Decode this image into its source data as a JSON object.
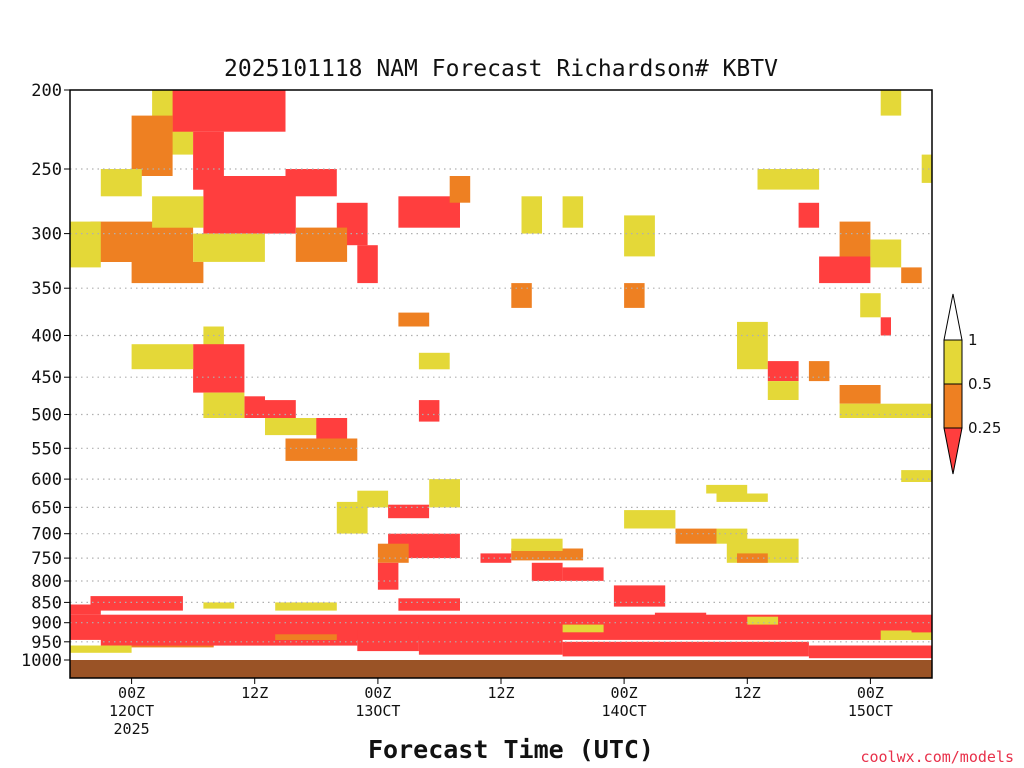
{
  "credit": "coolwx.com/models",
  "colors": {
    "lt_025": "#ff3e3e",
    "025_05": "#ee8022",
    "05_1": "#e4d838",
    "ground": "#9a5326",
    "gridline": "#b0b0b0"
  },
  "chart_data": {
    "type": "heatmap",
    "title": "2025101118 NAM Forecast Richardson# KBTV",
    "xlabel": "Forecast Time (UTC)",
    "ylabel": "",
    "y_scale": "log-pressure (hPa, inverted)",
    "ylim": [
      1000,
      200
    ],
    "y_ticks": [
      200,
      250,
      300,
      350,
      400,
      450,
      500,
      550,
      600,
      650,
      700,
      750,
      800,
      850,
      900,
      950,
      1000
    ],
    "x_unit": "forecast hour from 2025-10-11 18Z",
    "xlim": [
      0,
      84
    ],
    "x_ticks": [
      {
        "hour": 6,
        "labels": [
          "00Z",
          "12OCT",
          "2025"
        ]
      },
      {
        "hour": 18,
        "labels": [
          "12Z"
        ]
      },
      {
        "hour": 30,
        "labels": [
          "00Z",
          "13OCT"
        ]
      },
      {
        "hour": 42,
        "labels": [
          "12Z"
        ]
      },
      {
        "hour": 54,
        "labels": [
          "00Z",
          "14OCT"
        ]
      },
      {
        "hour": 66,
        "labels": [
          "12Z"
        ]
      },
      {
        "hour": 78,
        "labels": [
          "00Z",
          "15OCT"
        ]
      }
    ],
    "legend": {
      "placement": "right",
      "labels": [
        "1",
        "0.5",
        "0.25"
      ],
      "bins": [
        {
          "range": "< 0.25",
          "color": "#ff3e3e"
        },
        {
          "range": "0.25-0.5",
          "color": "#ee8022"
        },
        {
          "range": "0.5-1",
          "color": "#e4d838"
        }
      ]
    },
    "grid": "dotted horizontal at pressure ticks",
    "regions": [
      {
        "bin": "05_1",
        "x": [
          8,
          12
        ],
        "p": [
          200,
          240
        ]
      },
      {
        "bin": "lt_025",
        "x": [
          10,
          21
        ],
        "p": [
          200,
          225
        ]
      },
      {
        "bin": "025_05",
        "x": [
          6,
          10
        ],
        "p": [
          215,
          255
        ]
      },
      {
        "bin": "lt_025",
        "x": [
          12,
          15
        ],
        "p": [
          225,
          265
        ]
      },
      {
        "bin": "lt_025",
        "x": [
          13,
          22
        ],
        "p": [
          255,
          300
        ]
      },
      {
        "bin": "05_1",
        "x": [
          3,
          7
        ],
        "p": [
          250,
          270
        ]
      },
      {
        "bin": "025_05",
        "x": [
          2,
          12
        ],
        "p": [
          290,
          325
        ]
      },
      {
        "bin": "05_1",
        "x": [
          0,
          3
        ],
        "p": [
          290,
          330
        ]
      },
      {
        "bin": "05_1",
        "x": [
          8,
          13
        ],
        "p": [
          270,
          295
        ]
      },
      {
        "bin": "05_1",
        "x": [
          12,
          19
        ],
        "p": [
          300,
          325
        ]
      },
      {
        "bin": "025_05",
        "x": [
          6,
          13
        ],
        "p": [
          325,
          345
        ]
      },
      {
        "bin": "lt_025",
        "x": [
          21,
          26
        ],
        "p": [
          250,
          270
        ]
      },
      {
        "bin": "lt_025",
        "x": [
          26,
          29
        ],
        "p": [
          275,
          310
        ]
      },
      {
        "bin": "025_05",
        "x": [
          22,
          27
        ],
        "p": [
          295,
          325
        ]
      },
      {
        "bin": "lt_025",
        "x": [
          28,
          30
        ],
        "p": [
          310,
          345
        ]
      },
      {
        "bin": "lt_025",
        "x": [
          32,
          38
        ],
        "p": [
          270,
          295
        ]
      },
      {
        "bin": "025_05",
        "x": [
          37,
          39
        ],
        "p": [
          255,
          275
        ]
      },
      {
        "bin": "05_1",
        "x": [
          44,
          46
        ],
        "p": [
          270,
          300
        ]
      },
      {
        "bin": "05_1",
        "x": [
          48,
          50
        ],
        "p": [
          270,
          295
        ]
      },
      {
        "bin": "05_1",
        "x": [
          13,
          15
        ],
        "p": [
          390,
          420
        ]
      },
      {
        "bin": "lt_025",
        "x": [
          12,
          17
        ],
        "p": [
          410,
          470
        ]
      },
      {
        "bin": "05_1",
        "x": [
          6,
          12
        ],
        "p": [
          410,
          440
        ]
      },
      {
        "bin": "lt_025",
        "x": [
          17,
          19
        ],
        "p": [
          475,
          505
        ]
      },
      {
        "bin": "lt_025",
        "x": [
          19,
          22
        ],
        "p": [
          480,
          505
        ]
      },
      {
        "bin": "05_1",
        "x": [
          19,
          27
        ],
        "p": [
          505,
          530
        ]
      },
      {
        "bin": "lt_025",
        "x": [
          24,
          27
        ],
        "p": [
          505,
          540
        ]
      },
      {
        "bin": "025_05",
        "x": [
          21,
          28
        ],
        "p": [
          535,
          570
        ]
      },
      {
        "bin": "05_1",
        "x": [
          13,
          17
        ],
        "p": [
          470,
          505
        ]
      },
      {
        "bin": "lt_025",
        "x": [
          34,
          36
        ],
        "p": [
          480,
          510
        ]
      },
      {
        "bin": "025_05",
        "x": [
          32,
          35
        ],
        "p": [
          375,
          390
        ]
      },
      {
        "bin": "05_1",
        "x": [
          34,
          37
        ],
        "p": [
          420,
          440
        ]
      },
      {
        "bin": "025_05",
        "x": [
          43,
          45
        ],
        "p": [
          345,
          370
        ]
      },
      {
        "bin": "025_05",
        "x": [
          54,
          56
        ],
        "p": [
          345,
          370
        ]
      },
      {
        "bin": "05_1",
        "x": [
          54,
          57
        ],
        "p": [
          285,
          320
        ]
      },
      {
        "bin": "05_1",
        "x": [
          26,
          29
        ],
        "p": [
          640,
          700
        ]
      },
      {
        "bin": "lt_025",
        "x": [
          31,
          35
        ],
        "p": [
          645,
          670
        ]
      },
      {
        "bin": "05_1",
        "x": [
          28,
          31
        ],
        "p": [
          620,
          650
        ]
      },
      {
        "bin": "lt_025",
        "x": [
          31,
          38
        ],
        "p": [
          700,
          750
        ]
      },
      {
        "bin": "025_05",
        "x": [
          30,
          33
        ],
        "p": [
          720,
          760
        ]
      },
      {
        "bin": "lt_025",
        "x": [
          30,
          32
        ],
        "p": [
          760,
          820
        ]
      },
      {
        "bin": "05_1",
        "x": [
          35,
          38
        ],
        "p": [
          600,
          650
        ]
      },
      {
        "bin": "lt_025",
        "x": [
          40,
          43
        ],
        "p": [
          740,
          760
        ]
      },
      {
        "bin": "025_05",
        "x": [
          43,
          50
        ],
        "p": [
          730,
          755
        ]
      },
      {
        "bin": "05_1",
        "x": [
          43,
          48
        ],
        "p": [
          710,
          735
        ]
      },
      {
        "bin": "lt_025",
        "x": [
          45,
          48
        ],
        "p": [
          760,
          800
        ]
      },
      {
        "bin": "lt_025",
        "x": [
          48,
          52
        ],
        "p": [
          770,
          800
        ]
      },
      {
        "bin": "lt_025",
        "x": [
          53,
          58
        ],
        "p": [
          810,
          860
        ]
      },
      {
        "bin": "05_1",
        "x": [
          54,
          59
        ],
        "p": [
          655,
          690
        ]
      },
      {
        "bin": "025_05",
        "x": [
          59,
          63
        ],
        "p": [
          690,
          720
        ]
      },
      {
        "bin": "05_1",
        "x": [
          63,
          66
        ],
        "p": [
          690,
          720
        ]
      },
      {
        "bin": "05_1",
        "x": [
          62,
          66
        ],
        "p": [
          610,
          625
        ]
      },
      {
        "bin": "05_1",
        "x": [
          64,
          71
        ],
        "p": [
          710,
          760
        ]
      },
      {
        "bin": "025_05",
        "x": [
          65,
          68
        ],
        "p": [
          740,
          760
        ]
      },
      {
        "bin": "05_1",
        "x": [
          67,
          73
        ],
        "p": [
          250,
          265
        ]
      },
      {
        "bin": "lt_025",
        "x": [
          71,
          73
        ],
        "p": [
          275,
          295
        ]
      },
      {
        "bin": "025_05",
        "x": [
          75,
          78
        ],
        "p": [
          290,
          320
        ]
      },
      {
        "bin": "lt_025",
        "x": [
          73,
          78
        ],
        "p": [
          320,
          345
        ]
      },
      {
        "bin": "05_1",
        "x": [
          78,
          81
        ],
        "p": [
          305,
          330
        ]
      },
      {
        "bin": "025_05",
        "x": [
          81,
          83
        ],
        "p": [
          330,
          345
        ]
      },
      {
        "bin": "05_1",
        "x": [
          77,
          79
        ],
        "p": [
          355,
          380
        ]
      },
      {
        "bin": "lt_025",
        "x": [
          79,
          80
        ],
        "p": [
          380,
          400
        ]
      },
      {
        "bin": "05_1",
        "x": [
          65,
          68
        ],
        "p": [
          385,
          440
        ]
      },
      {
        "bin": "lt_025",
        "x": [
          68,
          71
        ],
        "p": [
          430,
          455
        ]
      },
      {
        "bin": "025_05",
        "x": [
          72,
          74
        ],
        "p": [
          430,
          455
        ]
      },
      {
        "bin": "05_1",
        "x": [
          68,
          71
        ],
        "p": [
          455,
          480
        ]
      },
      {
        "bin": "025_05",
        "x": [
          75,
          79
        ],
        "p": [
          460,
          485
        ]
      },
      {
        "bin": "05_1",
        "x": [
          75,
          84
        ],
        "p": [
          485,
          505
        ]
      },
      {
        "bin": "05_1",
        "x": [
          81,
          84
        ],
        "p": [
          585,
          605
        ]
      },
      {
        "bin": "05_1",
        "x": [
          79,
          81
        ],
        "p": [
          200,
          215
        ]
      },
      {
        "bin": "05_1",
        "x": [
          83,
          84
        ],
        "p": [
          240,
          260
        ]
      },
      {
        "bin": "05_1",
        "x": [
          63,
          68
        ],
        "p": [
          625,
          640
        ]
      },
      {
        "bin": "lt_025",
        "x": [
          0,
          3
        ],
        "p": [
          855,
          880
        ]
      },
      {
        "bin": "lt_025",
        "x": [
          2,
          11
        ],
        "p": [
          835,
          870
        ]
      },
      {
        "bin": "lt_025",
        "x": [
          0,
          84
        ],
        "p": [
          880,
          945
        ]
      },
      {
        "bin": "025_05",
        "x": [
          5,
          14
        ],
        "p": [
          945,
          965
        ]
      },
      {
        "bin": "lt_025",
        "x": [
          3,
          28
        ],
        "p": [
          900,
          960
        ]
      },
      {
        "bin": "lt_025",
        "x": [
          28,
          34
        ],
        "p": [
          920,
          975
        ]
      },
      {
        "bin": "025_05",
        "x": [
          20,
          26
        ],
        "p": [
          930,
          945
        ]
      },
      {
        "bin": "05_1",
        "x": [
          0,
          6
        ],
        "p": [
          960,
          980
        ]
      },
      {
        "bin": "lt_025",
        "x": [
          34,
          48
        ],
        "p": [
          935,
          985
        ]
      },
      {
        "bin": "05_1",
        "x": [
          48,
          52
        ],
        "p": [
          905,
          925
        ]
      },
      {
        "bin": "lt_025",
        "x": [
          48,
          72
        ],
        "p": [
          950,
          990
        ]
      },
      {
        "bin": "lt_025",
        "x": [
          72,
          84
        ],
        "p": [
          960,
          995
        ]
      },
      {
        "bin": "lt_025",
        "x": [
          57,
          62
        ],
        "p": [
          875,
          900
        ]
      },
      {
        "bin": "05_1",
        "x": [
          66,
          69
        ],
        "p": [
          885,
          905
        ]
      },
      {
        "bin": "05_1",
        "x": [
          79,
          84
        ],
        "p": [
          920,
          945
        ]
      },
      {
        "bin": "lt_025",
        "x": [
          82,
          84
        ],
        "p": [
          900,
          925
        ]
      },
      {
        "bin": "05_1",
        "x": [
          13,
          16
        ],
        "p": [
          850,
          865
        ]
      },
      {
        "bin": "05_1",
        "x": [
          20,
          26
        ],
        "p": [
          850,
          870
        ]
      },
      {
        "bin": "lt_025",
        "x": [
          32,
          38
        ],
        "p": [
          840,
          870
        ]
      }
    ]
  }
}
